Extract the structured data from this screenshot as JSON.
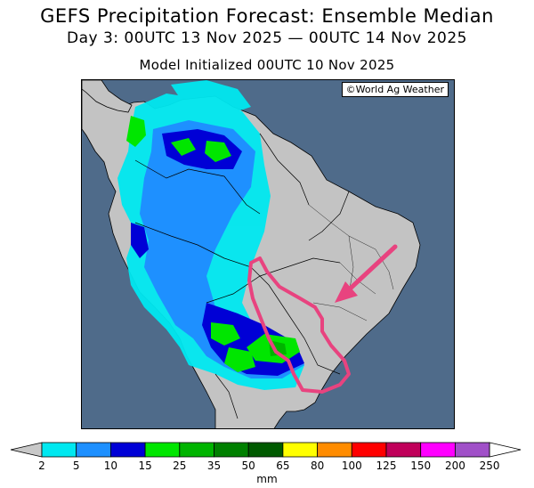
{
  "title": {
    "line1": "GEFS Precipitation Forecast: Ensemble Median",
    "line2": "Day 3: 00UTC 13 Nov 2025 — 00UTC 14 Nov 2025",
    "line3": "Model Initialized 00UTC 10 Nov 2025"
  },
  "credit": "©World Ag Weather",
  "colorbar": {
    "units": "mm",
    "labels": [
      "2",
      "5",
      "10",
      "15",
      "25",
      "35",
      "50",
      "65",
      "80",
      "100",
      "125",
      "150",
      "200",
      "250"
    ],
    "colors": [
      "#00e8f0",
      "#1e90ff",
      "#0000d6",
      "#00e600",
      "#00b400",
      "#008000",
      "#005a00",
      "#ffff00",
      "#ff8c00",
      "#ff0000",
      "#c0005a",
      "#ff00ff",
      "#a050c8"
    ],
    "under_color": "#c8c8c8",
    "over_color": "#ffffff"
  },
  "map": {
    "ocean_color": "#4f6b8a",
    "land_color": "#c3c3c3",
    "highlight_color": "#e8437f"
  }
}
